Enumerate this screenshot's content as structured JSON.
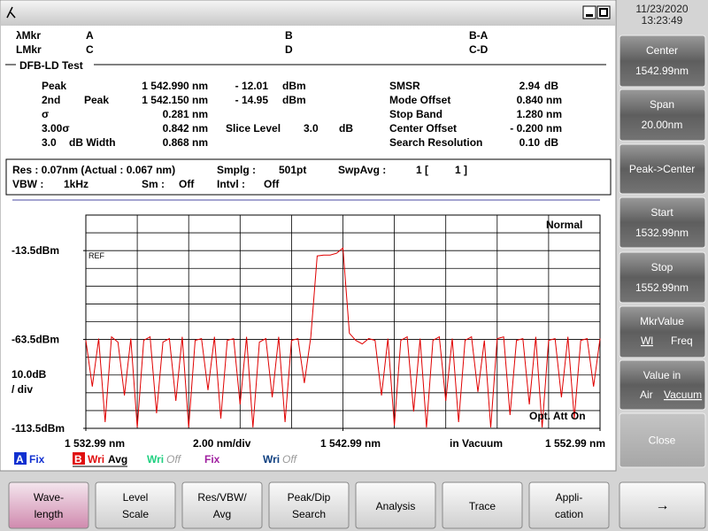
{
  "clock": {
    "date": "11/23/2020",
    "time": "13:23:49"
  },
  "markers": {
    "lambda_mkr": "λMkr",
    "l_mkr": "LMkr",
    "a": "A",
    "b": "B",
    "c": "C",
    "d": "D",
    "b_a": "B-A",
    "c_d": "C-D"
  },
  "test_title": "DFB-LD Test",
  "results": {
    "rows": [
      [
        "Peak",
        "1 542.990 nm",
        "- 12.01",
        "dBm",
        "SMSR",
        "2.94",
        "dB"
      ],
      [
        "2nd",
        "Peak",
        "1 542.150 nm",
        "- 14.95",
        "dBm",
        "Mode Offset",
        "0.840 nm"
      ],
      [
        "σ",
        "0.281 nm",
        "Stop Band",
        "1.280 nm"
      ],
      [
        "3.00σ",
        "0.842 nm",
        "Slice Level",
        "3.0",
        "dB",
        "Center Offset",
        "- 0.200 nm"
      ],
      [
        "3.0",
        "dB Width",
        "0.868 nm",
        "Search Resolution",
        "0.10",
        "dB"
      ]
    ]
  },
  "settings": {
    "rows": [
      [
        "Res : 0.07nm (Actual : 0.067 nm)",
        "Smplg :",
        "501pt",
        "SwpAvg :",
        "1 [",
        "1 ]"
      ],
      [
        "VBW :",
        "1kHz",
        "Sm :",
        "Off",
        "Intvl :",
        "Off"
      ]
    ]
  },
  "chart_data": {
    "type": "line",
    "xlim": [
      1532.99,
      1552.99
    ],
    "ylim": [
      -113.5,
      6.5
    ],
    "xticks": [
      {
        "value": 1532.99,
        "label": "1 532.99 nm"
      },
      {
        "value": 1542.99,
        "label": "1 542.99 nm"
      },
      {
        "value": 1552.99,
        "label": "1 552.99 nm"
      }
    ],
    "yticks": [
      {
        "value": -13.5,
        "label": "-13.5dBm"
      },
      {
        "value": -63.5,
        "label": "-63.5dBm"
      },
      {
        "value": -113.5,
        "label": "-113.5dBm"
      }
    ],
    "xgrid": [
      1532.99,
      1534.99,
      1536.99,
      1538.99,
      1540.99,
      1542.99,
      1544.99,
      1546.99,
      1548.99,
      1550.99,
      1552.99
    ],
    "ygrid": [
      6.5,
      -3.5,
      -13.5,
      -23.5,
      -33.5,
      -43.5,
      -53.5,
      -63.5,
      -73.5,
      -83.5,
      -93.5,
      -103.5,
      -113.5
    ],
    "x_scale": "2.00 nm/div",
    "y_scale": [
      "10.0dB",
      "/ div"
    ],
    "wavelength_mode": "in Vacuum",
    "mode": "Normal",
    "ref": "REF",
    "opt_att": "Opt. Att On",
    "x": [
      1532.99,
      1533.24,
      1533.49,
      1533.74,
      1533.99,
      1534.24,
      1534.49,
      1534.74,
      1534.99,
      1535.24,
      1535.49,
      1535.74,
      1535.99,
      1536.24,
      1536.49,
      1536.74,
      1536.99,
      1537.24,
      1537.49,
      1537.74,
      1537.99,
      1538.24,
      1538.49,
      1538.74,
      1538.99,
      1539.24,
      1539.49,
      1539.74,
      1539.99,
      1540.24,
      1540.49,
      1540.74,
      1540.99,
      1541.24,
      1541.49,
      1541.74,
      1541.99,
      1542.24,
      1542.49,
      1542.74,
      1542.99,
      1543.24,
      1543.49,
      1543.74,
      1543.99,
      1544.24,
      1544.49,
      1544.74,
      1544.99,
      1545.24,
      1545.49,
      1545.74,
      1545.99,
      1546.24,
      1546.49,
      1546.74,
      1546.99,
      1547.24,
      1547.49,
      1547.74,
      1547.99,
      1548.24,
      1548.49,
      1548.74,
      1548.99,
      1549.24,
      1549.49,
      1549.74,
      1549.99,
      1550.24,
      1550.49,
      1550.74,
      1550.99,
      1551.24,
      1551.49,
      1551.74,
      1551.99,
      1552.24,
      1552.49,
      1552.74,
      1552.99
    ],
    "series": [
      {
        "color": "#e00000",
        "values": [
          -64,
          -90,
          -63,
          -110,
          -62,
          -65,
          -95,
          -63,
          -113,
          -64,
          -62,
          -105,
          -65,
          -63,
          -98,
          -62,
          -113,
          -64,
          -63,
          -92,
          -62,
          -108,
          -64,
          -63,
          -100,
          -62,
          -113,
          -65,
          -63,
          -96,
          -62,
          -110,
          -64,
          -63,
          -88,
          -62,
          -16.5,
          -16,
          -16,
          -15,
          -12,
          -60,
          -64,
          -66,
          -63,
          -64,
          -95,
          -63,
          -112,
          -64,
          -62,
          -104,
          -63,
          -113,
          -64,
          -62,
          -98,
          -63,
          -110,
          -64,
          -62,
          -93,
          -64,
          -113,
          -63,
          -62,
          -106,
          -64,
          -63,
          -100,
          -62,
          -113,
          -64,
          -63,
          -96,
          -62,
          -108,
          -64,
          -63,
          -90,
          -63
        ]
      }
    ]
  },
  "traces": [
    {
      "id": "A",
      "state": "Fix"
    },
    {
      "id": "B",
      "state": "Wri",
      "extra": "Avg"
    },
    {
      "state": "Wri",
      "extra": "Off"
    },
    {
      "state": "Fix"
    },
    {
      "state": "Wri",
      "extra": "Off"
    }
  ],
  "side_buttons": [
    [
      "Center",
      "1542.99nm"
    ],
    [
      "Span",
      "20.00nm"
    ],
    [
      "Peak->Center"
    ],
    [
      "Start",
      "1532.99nm"
    ],
    [
      "Stop",
      "1552.99nm"
    ],
    [
      "MkrValue",
      "Wl",
      "Freq"
    ],
    [
      "Value in",
      "Air",
      "Vacuum"
    ],
    [
      "Close"
    ]
  ],
  "bottom_buttons": [
    [
      "Wave-",
      "length"
    ],
    [
      "Level",
      "Scale"
    ],
    [
      "Res/VBW/",
      "Avg"
    ],
    [
      "Peak/Dip",
      "Search"
    ],
    [
      "Analysis"
    ],
    [
      "Trace"
    ],
    [
      "Appli-",
      "cation"
    ],
    [
      "→"
    ]
  ]
}
